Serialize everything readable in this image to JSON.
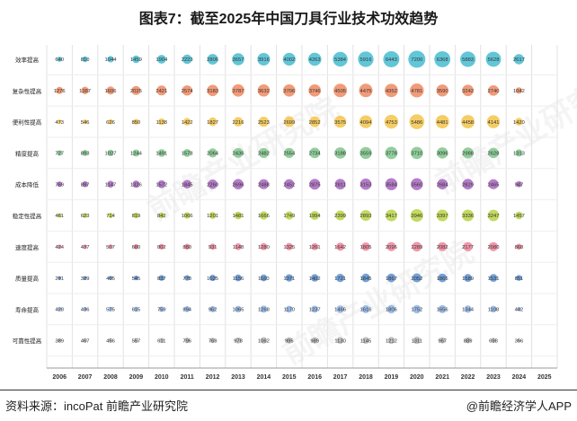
{
  "title": "图表7：截至2025年中国刀具行业技术功效趋势",
  "source": "资料来源：incoPat 前瞻产业研究院",
  "brand": "@前瞻经济学人APP",
  "watermark": "前瞻产业研究院",
  "chart_data": {
    "type": "bubble",
    "title": "图表7：截至2025年中国刀具行业技术功效趋势",
    "x": [
      "2006",
      "2007",
      "2008",
      "2009",
      "2010",
      "2011",
      "2012",
      "2013",
      "2014",
      "2015",
      "2016",
      "2017",
      "2018",
      "2019",
      "2020",
      "2021",
      "2022",
      "2023",
      "2024",
      "2025"
    ],
    "categories": [
      "效率提高",
      "复杂性提高",
      "便利性提高",
      "精度提高",
      "成本降低",
      "稳定性提高",
      "速度提高",
      "质量提高",
      "寿命提高",
      "可靠性提高"
    ],
    "colors": [
      "#45bcd0",
      "#ef8a62",
      "#f3c44a",
      "#7fc58b",
      "#a866c0",
      "#b7d444",
      "#f0849a",
      "#5b8fd0",
      "#8fb4e6",
      "#b8b8b8"
    ],
    "series": [
      {
        "name": "效率提高",
        "values": [
          640,
          810,
          1044,
          1459,
          1904,
          2223,
          2806,
          3657,
          3916,
          4002,
          4263,
          5384,
          5916,
          6443,
          7200,
          6368,
          5883,
          5628,
          2617,
          null
        ]
      },
      {
        "name": "复杂性提高",
        "values": [
          1276,
          1387,
          1606,
          2025,
          2421,
          2574,
          3183,
          3787,
          3632,
          3706,
          3746,
          4505,
          4475,
          4352,
          4781,
          3590,
          3242,
          2740,
          1042,
          null
        ]
      },
      {
        "name": "便利性提高",
        "values": [
          473,
          546,
          626,
          850,
          1138,
          1422,
          1827,
          2216,
          2523,
          2699,
          2852,
          3575,
          4094,
          4753,
          5486,
          4481,
          4458,
          4141,
          1420,
          null
        ]
      },
      {
        "name": "精度提高",
        "values": [
          727,
          893,
          1027,
          1244,
          1491,
          1578,
          2064,
          2436,
          2482,
          2554,
          2734,
          3188,
          3559,
          3778,
          3710,
          3096,
          2988,
          2628,
          1313,
          null
        ]
      },
      {
        "name": "成本降低",
        "values": [
          769,
          897,
          1147,
          1326,
          1572,
          1845,
          2260,
          2696,
          2488,
          2452,
          2875,
          2811,
          3153,
          3584,
          3560,
          2684,
          2829,
          2465,
          947,
          null
        ]
      },
      {
        "name": "稳定性提高",
        "values": [
          461,
          623,
          714,
          819,
          842,
          1066,
          1201,
          1481,
          1666,
          1749,
          1994,
          2399,
          2893,
          3417,
          3946,
          3397,
          3336,
          3247,
          1457,
          null
        ]
      },
      {
        "name": "速度提高",
        "values": [
          424,
          437,
          507,
          680,
          802,
          880,
          931,
          1148,
          1280,
          1325,
          1261,
          1642,
          1805,
          2096,
          2289,
          2082,
          2177,
          2080,
          868,
          null
        ]
      },
      {
        "name": "质量提高",
        "values": [
          291,
          329,
          405,
          545,
          837,
          778,
          1025,
          1156,
          1160,
          1371,
          1402,
          1721,
          1845,
          1867,
          2052,
          1865,
          1589,
          1531,
          851,
          null
        ]
      },
      {
        "name": "寿命提高",
        "values": [
          428,
          436,
          575,
          615,
          759,
          894,
          962,
          1065,
          1268,
          1170,
          1237,
          1466,
          1616,
          1806,
          1752,
          1656,
          1344,
          1108,
          442,
          null
        ]
      },
      {
        "name": "可靠性提高",
        "values": [
          389,
          467,
          456,
          557,
          611,
          796,
          769,
          978,
          1062,
          995,
          989,
          1130,
          1145,
          1212,
          1311,
          967,
          889,
          698,
          356,
          null
        ]
      }
    ]
  }
}
